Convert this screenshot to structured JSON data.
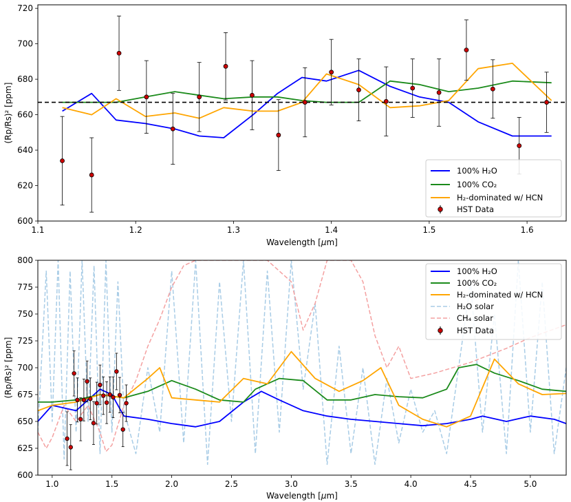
{
  "colors": {
    "h2o": "#0000ff",
    "co2": "#1a8a1a",
    "hcn": "#ffa500",
    "h2o_solar": "#a8cce6",
    "ch4_solar": "#f4a0a0",
    "hst_face": "#cc0000",
    "refline": "#000000"
  },
  "chart_data": [
    {
      "type": "line",
      "id": "top",
      "xlabel_pre": "Wavelength [",
      "xlabel_mu": "μ",
      "xlabel_post": "m]",
      "ylabel": "(Rp/Rs)² [ppm]",
      "xlim": [
        1.1,
        1.64
      ],
      "ylim": [
        600,
        722
      ],
      "xticks": [
        1.1,
        1.2,
        1.3,
        1.4,
        1.5,
        1.6
      ],
      "xtick_labels": [
        "1.1",
        "1.2",
        "1.3",
        "1.4",
        "1.5",
        "1.6"
      ],
      "yticks": [
        600,
        620,
        640,
        660,
        680,
        700,
        720
      ],
      "ytick_labels": [
        "600",
        "620",
        "640",
        "660",
        "680",
        "700",
        "720"
      ],
      "reference_line": 667,
      "legend_position": "lower-right",
      "legend": [
        "100% H₂O",
        "100% CO₂",
        "H₂-dominated w/ HCN",
        "HST Data"
      ],
      "series": [
        {
          "name": "100% H2O",
          "color_key": "h2o",
          "x": [
            1.125,
            1.155,
            1.18,
            1.21,
            1.24,
            1.265,
            1.29,
            1.32,
            1.345,
            1.37,
            1.395,
            1.428,
            1.46,
            1.49,
            1.52,
            1.55,
            1.585,
            1.625
          ],
          "y": [
            662,
            672,
            657,
            655,
            652,
            648,
            647,
            660,
            672,
            681,
            679,
            685,
            676,
            670,
            667,
            656,
            648,
            648
          ]
        },
        {
          "name": "100% CO2",
          "color_key": "co2",
          "x": [
            1.125,
            1.155,
            1.18,
            1.21,
            1.24,
            1.265,
            1.29,
            1.32,
            1.345,
            1.37,
            1.395,
            1.428,
            1.46,
            1.49,
            1.52,
            1.55,
            1.585,
            1.625
          ],
          "y": [
            667,
            667,
            667,
            670,
            673,
            671,
            669,
            670,
            670,
            668,
            667,
            667,
            679,
            677,
            673,
            675,
            679,
            678
          ]
        },
        {
          "name": "H2-dominated w/ HCN",
          "color_key": "hcn",
          "x": [
            1.125,
            1.155,
            1.18,
            1.21,
            1.24,
            1.265,
            1.29,
            1.32,
            1.345,
            1.37,
            1.395,
            1.428,
            1.46,
            1.49,
            1.52,
            1.55,
            1.585,
            1.625
          ],
          "y": [
            664,
            660,
            669,
            659,
            661,
            658,
            664,
            662,
            662,
            667,
            683,
            677,
            664,
            665,
            668,
            686,
            689,
            668
          ]
        }
      ],
      "hst": {
        "x": [
          1.125,
          1.155,
          1.183,
          1.211,
          1.238,
          1.265,
          1.292,
          1.319,
          1.346,
          1.373,
          1.4,
          1.428,
          1.456,
          1.483,
          1.51,
          1.538,
          1.565,
          1.592,
          1.62
        ],
        "y": [
          634,
          626,
          694.7,
          670,
          652,
          670,
          687.3,
          671,
          648.5,
          667,
          684,
          674,
          667.5,
          675,
          672.5,
          696.5,
          674.5,
          642.5,
          667
        ],
        "err": [
          25,
          21,
          21,
          20.5,
          20,
          19.5,
          19,
          19.5,
          20,
          19.5,
          18.5,
          17.5,
          19.5,
          16.5,
          19,
          17,
          16.5,
          16,
          17
        ]
      }
    },
    {
      "type": "line",
      "id": "bottom",
      "xlabel_pre": "Wavelength [",
      "xlabel_mu": "μ",
      "xlabel_post": "m]",
      "ylabel": "(Rp/Rs)² [ppm]",
      "xlim": [
        0.88,
        5.3
      ],
      "ylim": [
        600,
        800
      ],
      "xticks": [
        1.0,
        1.5,
        2.0,
        2.5,
        3.0,
        3.5,
        4.0,
        4.5,
        5.0
      ],
      "xtick_labels": [
        "1.0",
        "1.5",
        "2.0",
        "2.5",
        "3.0",
        "3.5",
        "4.0",
        "4.5",
        "5.0"
      ],
      "yticks": [
        600,
        625,
        650,
        675,
        700,
        725,
        750,
        775,
        800
      ],
      "ytick_labels": [
        "600",
        "625",
        "650",
        "675",
        "700",
        "725",
        "750",
        "775",
        "800"
      ],
      "legend_position": "upper-right",
      "legend": [
        "100% H₂O",
        "100% CO₂",
        "H₂-dominated w/ HCN",
        "H₂O solar",
        "CH₄ solar",
        "HST Data"
      ],
      "series": [
        {
          "name": "100% H2O",
          "color_key": "h2o",
          "x": [
            0.88,
            1.0,
            1.2,
            1.4,
            1.5,
            1.6,
            1.8,
            2.0,
            2.2,
            2.4,
            2.6,
            2.75,
            2.9,
            3.1,
            3.3,
            3.5,
            3.7,
            3.9,
            4.1,
            4.3,
            4.5,
            4.6,
            4.8,
            5.0,
            5.2,
            5.3
          ],
          "y": [
            650,
            665,
            660,
            680,
            675,
            655,
            652,
            648,
            645,
            650,
            668,
            678,
            670,
            660,
            655,
            652,
            650,
            648,
            646,
            648,
            652,
            655,
            650,
            655,
            652,
            648
          ]
        },
        {
          "name": "100% CO2",
          "color_key": "co2",
          "x": [
            0.88,
            1.0,
            1.2,
            1.4,
            1.6,
            1.8,
            2.0,
            2.2,
            2.4,
            2.6,
            2.7,
            2.9,
            3.1,
            3.3,
            3.5,
            3.7,
            3.9,
            4.1,
            4.3,
            4.4,
            4.55,
            4.7,
            4.9,
            5.1,
            5.3
          ],
          "y": [
            668,
            668,
            670,
            675,
            672,
            678,
            688,
            680,
            670,
            668,
            680,
            690,
            688,
            670,
            670,
            675,
            673,
            672,
            680,
            700,
            703,
            695,
            688,
            680,
            678
          ]
        },
        {
          "name": "H2-dominated w/ HCN",
          "color_key": "hcn",
          "x": [
            0.88,
            1.0,
            1.2,
            1.4,
            1.6,
            1.8,
            1.9,
            2.0,
            2.2,
            2.4,
            2.6,
            2.8,
            3.0,
            3.2,
            3.4,
            3.6,
            3.75,
            3.9,
            4.1,
            4.3,
            4.5,
            4.7,
            4.9,
            5.1,
            5.3
          ],
          "y": [
            660,
            665,
            668,
            675,
            672,
            690,
            700,
            672,
            670,
            668,
            690,
            685,
            715,
            690,
            678,
            688,
            700,
            665,
            652,
            645,
            655,
            708,
            685,
            675,
            676
          ]
        },
        {
          "name": "H2O solar",
          "color_key": "h2o_solar",
          "x": [
            0.88,
            0.95,
            1.0,
            1.05,
            1.1,
            1.15,
            1.2,
            1.25,
            1.3,
            1.35,
            1.4,
            1.45,
            1.5,
            1.55,
            1.6,
            1.7,
            1.8,
            1.9,
            2.0,
            2.1,
            2.2,
            2.3,
            2.4,
            2.5,
            2.6,
            2.7,
            2.8,
            2.9,
            3.0,
            3.1,
            3.2,
            3.3,
            3.4,
            3.5,
            3.6,
            3.7,
            3.8,
            3.9,
            4.0,
            4.1,
            4.2,
            4.3,
            4.4,
            4.5,
            4.6,
            4.7,
            4.8,
            4.9,
            5.0,
            5.1,
            5.2,
            5.3
          ],
          "y": [
            640,
            790,
            650,
            800,
            615,
            790,
            640,
            800,
            650,
            795,
            620,
            800,
            640,
            780,
            660,
            620,
            700,
            640,
            790,
            630,
            800,
            610,
            780,
            650,
            800,
            620,
            790,
            640,
            800,
            680,
            760,
            610,
            720,
            620,
            700,
            610,
            690,
            630,
            680,
            640,
            660,
            620,
            700,
            780,
            640,
            750,
            620,
            800,
            640,
            780,
            620,
            700
          ]
        },
        {
          "name": "CH4 solar",
          "color_key": "ch4_solar",
          "x": [
            0.88,
            0.95,
            1.0,
            1.1,
            1.2,
            1.3,
            1.4,
            1.45,
            1.5,
            1.6,
            1.7,
            1.8,
            1.9,
            2.0,
            2.1,
            2.2,
            2.3,
            2.4,
            2.5,
            2.6,
            2.7,
            2.8,
            2.9,
            3.0,
            3.1,
            3.2,
            3.3,
            3.4,
            3.5,
            3.6,
            3.7,
            3.8,
            3.9,
            4.0,
            4.2,
            4.5,
            4.8,
            5.0,
            5.3
          ],
          "y": [
            640,
            625,
            635,
            665,
            650,
            665,
            640,
            622,
            628,
            665,
            688,
            720,
            745,
            775,
            795,
            800,
            800,
            800,
            800,
            800,
            800,
            800,
            790,
            780,
            735,
            760,
            800,
            800,
            800,
            780,
            730,
            700,
            720,
            690,
            695,
            705,
            718,
            728,
            740
          ]
        }
      ],
      "hst": {
        "x": [
          1.125,
          1.155,
          1.183,
          1.211,
          1.238,
          1.265,
          1.292,
          1.319,
          1.346,
          1.373,
          1.4,
          1.428,
          1.456,
          1.483,
          1.51,
          1.538,
          1.565,
          1.592,
          1.62
        ],
        "y": [
          634,
          626,
          694.7,
          670,
          652,
          670,
          687.3,
          671,
          648.5,
          667,
          684,
          674,
          667.5,
          675,
          672.5,
          696.5,
          674.5,
          642.5,
          667
        ],
        "err": [
          25,
          21,
          21,
          20.5,
          20,
          19.5,
          19,
          19.5,
          20,
          19.5,
          18.5,
          17.5,
          19.5,
          16.5,
          19,
          17,
          16.5,
          16,
          17
        ]
      }
    }
  ]
}
